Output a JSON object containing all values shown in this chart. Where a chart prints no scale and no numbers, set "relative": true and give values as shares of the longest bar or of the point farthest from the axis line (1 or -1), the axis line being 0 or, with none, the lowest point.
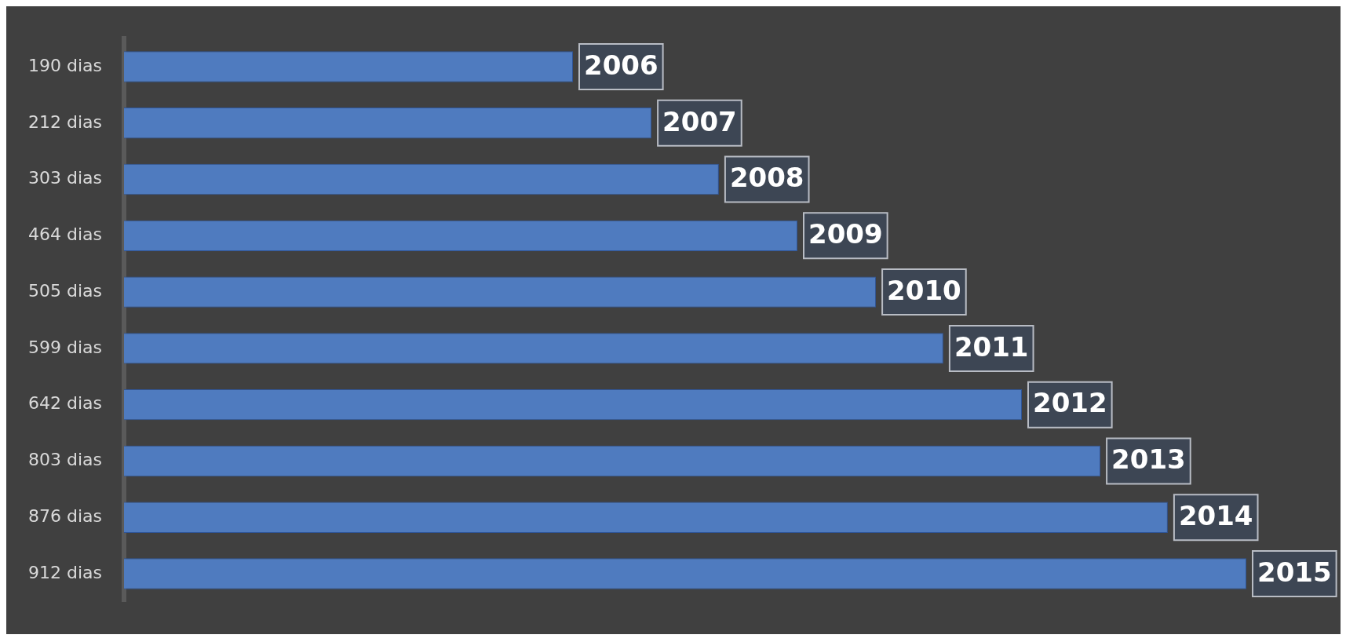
{
  "chart_data": {
    "type": "bar",
    "orientation": "horizontal",
    "relative": true,
    "categories": [
      "190 dias",
      "212 dias",
      "303 dias",
      "464 dias",
      "505 dias",
      "599 dias",
      "642 dias",
      "803 dias",
      "876 dias",
      "912 dias"
    ],
    "values": [
      0.4,
      0.47,
      0.53,
      0.6,
      0.67,
      0.73,
      0.8,
      0.87,
      0.93,
      1
    ],
    "annotations": [
      {
        "text": "2006",
        "x": 0.4,
        "y": "190 dias"
      },
      {
        "text": "2007",
        "x": 0.47,
        "y": "212 dias"
      },
      {
        "text": "2008",
        "x": 0.53,
        "y": "303 dias"
      },
      {
        "text": "2009",
        "x": 0.6,
        "y": "464 dias"
      },
      {
        "text": "2010",
        "x": 0.67,
        "y": "505 dias"
      },
      {
        "text": "2011",
        "x": 0.73,
        "y": "599 dias"
      },
      {
        "text": "2012",
        "x": 0.8,
        "y": "642 dias"
      },
      {
        "text": "2013",
        "x": 0.87,
        "y": "803 dias"
      },
      {
        "text": "2014",
        "x": 0.93,
        "y": "876 dias"
      },
      {
        "text": "2015",
        "x": 1,
        "y": "912 dias"
      }
    ],
    "color": "#4f7bbf",
    "grid": false,
    "legend": false
  }
}
